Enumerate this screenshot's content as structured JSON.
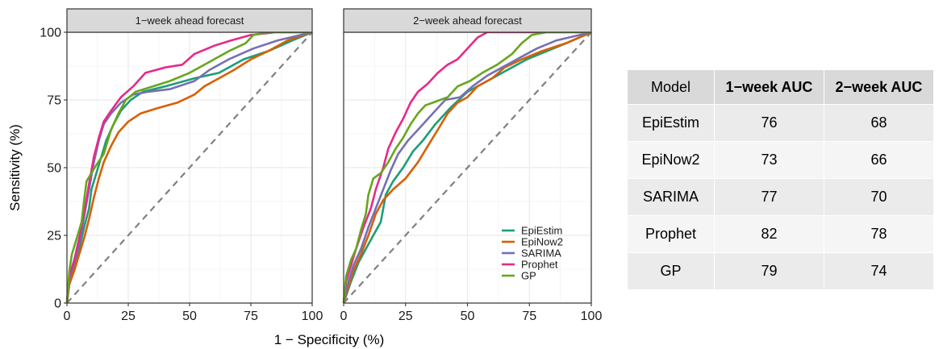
{
  "chart_data": [
    {
      "type": "line",
      "panel": "1−week ahead forecast",
      "xlabel": "1 − Specificity (%)",
      "ylabel": "Sensitivity (%)",
      "xlim": [
        0,
        100
      ],
      "ylim": [
        0,
        100
      ],
      "x_ticks": [
        "0",
        "25",
        "50",
        "75",
        "100"
      ],
      "y_ticks": [
        "0",
        "25",
        "50",
        "75",
        "100"
      ],
      "grid": true,
      "reference_line": "diagonal dashed",
      "series": [
        {
          "name": "EpiEstim",
          "color": "#1b9e77",
          "points": [
            [
              0,
              0
            ],
            [
              1,
              8
            ],
            [
              3,
              13
            ],
            [
              5,
              20
            ],
            [
              7,
              28
            ],
            [
              9,
              35
            ],
            [
              10,
              42
            ],
            [
              12,
              48
            ],
            [
              14,
              54
            ],
            [
              16,
              60
            ],
            [
              19,
              66
            ],
            [
              22,
              71
            ],
            [
              26,
              75
            ],
            [
              31,
              78
            ],
            [
              40,
              80
            ],
            [
              52,
              83
            ],
            [
              62,
              85
            ],
            [
              72,
              90
            ],
            [
              82,
              93
            ],
            [
              92,
              97
            ],
            [
              100,
              100
            ]
          ]
        },
        {
          "name": "EpiNow2",
          "color": "#d95f02",
          "points": [
            [
              0,
              0
            ],
            [
              1,
              7
            ],
            [
              3,
              12
            ],
            [
              5,
              18
            ],
            [
              7,
              24
            ],
            [
              9,
              31
            ],
            [
              11,
              39
            ],
            [
              13,
              46
            ],
            [
              15,
              52
            ],
            [
              18,
              58
            ],
            [
              21,
              63
            ],
            [
              25,
              67
            ],
            [
              30,
              70
            ],
            [
              37,
              72
            ],
            [
              45,
              74
            ],
            [
              52,
              77
            ],
            [
              56,
              80
            ],
            [
              62,
              83
            ],
            [
              68,
              86
            ],
            [
              75,
              90
            ],
            [
              82,
              93
            ],
            [
              90,
              97
            ],
            [
              100,
              100
            ]
          ]
        },
        {
          "name": "SARIMA",
          "color": "#7570b3",
          "points": [
            [
              0,
              0
            ],
            [
              1,
              9
            ],
            [
              3,
              15
            ],
            [
              5,
              22
            ],
            [
              7,
              32
            ],
            [
              9,
              42
            ],
            [
              11,
              52
            ],
            [
              13,
              60
            ],
            [
              15,
              66
            ],
            [
              18,
              70
            ],
            [
              22,
              74
            ],
            [
              27,
              77
            ],
            [
              33,
              78
            ],
            [
              42,
              79
            ],
            [
              52,
              82
            ],
            [
              58,
              86
            ],
            [
              66,
              90
            ],
            [
              76,
              94
            ],
            [
              86,
              97
            ],
            [
              100,
              100
            ]
          ]
        },
        {
          "name": "Prophet",
          "color": "#e7298a",
          "points": [
            [
              0,
              0
            ],
            [
              1,
              10
            ],
            [
              3,
              16
            ],
            [
              5,
              24
            ],
            [
              7,
              33
            ],
            [
              9,
              44
            ],
            [
              11,
              54
            ],
            [
              13,
              61
            ],
            [
              15,
              67
            ],
            [
              18,
              71
            ],
            [
              22,
              76
            ],
            [
              27,
              80
            ],
            [
              32,
              85
            ],
            [
              40,
              87
            ],
            [
              47,
              88
            ],
            [
              52,
              92
            ],
            [
              60,
              95
            ],
            [
              67,
              97
            ],
            [
              75,
              99
            ],
            [
              85,
              100
            ],
            [
              100,
              100
            ]
          ]
        },
        {
          "name": "GP",
          "color": "#66a61e",
          "points": [
            [
              0,
              0
            ],
            [
              1,
              12
            ],
            [
              2,
              18
            ],
            [
              4,
              24
            ],
            [
              6,
              30
            ],
            [
              7,
              38
            ],
            [
              8,
              45
            ],
            [
              10,
              48
            ],
            [
              12,
              51
            ],
            [
              15,
              55
            ],
            [
              18,
              64
            ],
            [
              21,
              70
            ],
            [
              24,
              75
            ],
            [
              28,
              78
            ],
            [
              35,
              80
            ],
            [
              42,
              82
            ],
            [
              50,
              85
            ],
            [
              58,
              89
            ],
            [
              66,
              93
            ],
            [
              73,
              96
            ],
            [
              76,
              99
            ],
            [
              82,
              100
            ],
            [
              100,
              100
            ]
          ]
        }
      ]
    },
    {
      "type": "line",
      "panel": "2−week ahead forecast",
      "xlabel": "1 − Specificity (%)",
      "ylabel": "Sensitivity (%)",
      "xlim": [
        0,
        100
      ],
      "ylim": [
        0,
        100
      ],
      "x_ticks": [
        "0",
        "25",
        "50",
        "75",
        "100"
      ],
      "y_ticks": [
        "0",
        "25",
        "50",
        "75",
        "100"
      ],
      "grid": true,
      "reference_line": "diagonal dashed",
      "series": [
        {
          "name": "EpiEstim",
          "color": "#1b9e77",
          "points": [
            [
              0,
              0
            ],
            [
              3,
              8
            ],
            [
              6,
              15
            ],
            [
              9,
              20
            ],
            [
              12,
              25
            ],
            [
              15,
              30
            ],
            [
              17,
              40
            ],
            [
              20,
              45
            ],
            [
              24,
              50
            ],
            [
              28,
              56
            ],
            [
              32,
              60
            ],
            [
              37,
              66
            ],
            [
              43,
              72
            ],
            [
              50,
              78
            ],
            [
              58,
              82
            ],
            [
              66,
              86
            ],
            [
              74,
              90
            ],
            [
              82,
              93
            ],
            [
              90,
              96
            ],
            [
              100,
              100
            ]
          ]
        },
        {
          "name": "EpiNow2",
          "color": "#d95f02",
          "points": [
            [
              0,
              0
            ],
            [
              2,
              6
            ],
            [
              4,
              12
            ],
            [
              7,
              18
            ],
            [
              10,
              25
            ],
            [
              13,
              33
            ],
            [
              16,
              38
            ],
            [
              20,
              42
            ],
            [
              25,
              46
            ],
            [
              30,
              52
            ],
            [
              34,
              58
            ],
            [
              38,
              64
            ],
            [
              42,
              70
            ],
            [
              46,
              74
            ],
            [
              50,
              76
            ],
            [
              54,
              80
            ],
            [
              60,
              83
            ],
            [
              65,
              87
            ],
            [
              72,
              90
            ],
            [
              80,
              93
            ],
            [
              90,
              96
            ],
            [
              100,
              100
            ]
          ]
        },
        {
          "name": "SARIMA",
          "color": "#7570b3",
          "points": [
            [
              0,
              0
            ],
            [
              2,
              8
            ],
            [
              4,
              14
            ],
            [
              7,
              20
            ],
            [
              10,
              28
            ],
            [
              13,
              35
            ],
            [
              16,
              42
            ],
            [
              19,
              49
            ],
            [
              22,
              55
            ],
            [
              26,
              60
            ],
            [
              31,
              65
            ],
            [
              36,
              70
            ],
            [
              41,
              75
            ],
            [
              47,
              76
            ],
            [
              52,
              80
            ],
            [
              58,
              84
            ],
            [
              66,
              88
            ],
            [
              72,
              91
            ],
            [
              78,
              94
            ],
            [
              86,
              97
            ],
            [
              100,
              100
            ]
          ]
        },
        {
          "name": "Prophet",
          "color": "#e7298a",
          "points": [
            [
              0,
              0
            ],
            [
              1,
              8
            ],
            [
              3,
              14
            ],
            [
              5,
              20
            ],
            [
              8,
              28
            ],
            [
              11,
              35
            ],
            [
              13,
              42
            ],
            [
              16,
              50
            ],
            [
              18,
              57
            ],
            [
              21,
              63
            ],
            [
              24,
              68
            ],
            [
              27,
              74
            ],
            [
              30,
              78
            ],
            [
              34,
              81
            ],
            [
              38,
              85
            ],
            [
              42,
              88
            ],
            [
              46,
              90
            ],
            [
              50,
              94
            ],
            [
              54,
              98
            ],
            [
              58,
              100
            ],
            [
              100,
              100
            ]
          ]
        },
        {
          "name": "GP",
          "color": "#66a61e",
          "points": [
            [
              0,
              0
            ],
            [
              1,
              10
            ],
            [
              3,
              16
            ],
            [
              5,
              20
            ],
            [
              7,
              27
            ],
            [
              9,
              33
            ],
            [
              10,
              40
            ],
            [
              12,
              46
            ],
            [
              15,
              48
            ],
            [
              18,
              52
            ],
            [
              21,
              57
            ],
            [
              24,
              61
            ],
            [
              27,
              66
            ],
            [
              30,
              70
            ],
            [
              33,
              73
            ],
            [
              36,
              74
            ],
            [
              42,
              76
            ],
            [
              46,
              80
            ],
            [
              51,
              82
            ],
            [
              56,
              85
            ],
            [
              62,
              88
            ],
            [
              68,
              92
            ],
            [
              72,
              96
            ],
            [
              76,
              99
            ],
            [
              82,
              100
            ],
            [
              100,
              100
            ]
          ]
        }
      ]
    }
  ],
  "legend": {
    "placement": "bottom-right of 2−week panel",
    "items": [
      {
        "name": "EpiEstim",
        "color": "#1b9e77"
      },
      {
        "name": "EpiNow2",
        "color": "#d95f02"
      },
      {
        "name": "SARIMA",
        "color": "#7570b3"
      },
      {
        "name": "Prophet",
        "color": "#e7298a"
      },
      {
        "name": "GP",
        "color": "#66a61e"
      }
    ]
  },
  "auc_table": {
    "headers": [
      "Model",
      "1−week AUC",
      "2−week AUC"
    ],
    "rows": [
      [
        "EpiEstim",
        "76",
        "68"
      ],
      [
        "EpiNow2",
        "73",
        "66"
      ],
      [
        "SARIMA",
        "77",
        "70"
      ],
      [
        "Prophet",
        "82",
        "78"
      ],
      [
        "GP",
        "79",
        "74"
      ]
    ]
  }
}
